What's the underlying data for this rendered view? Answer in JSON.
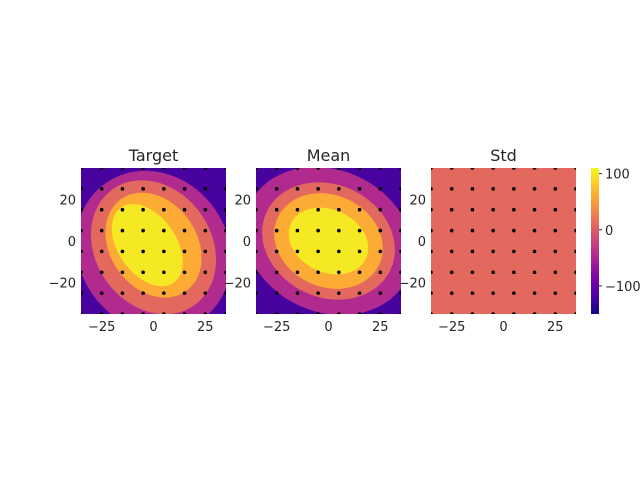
{
  "chart_data": {
    "type": "heatmap",
    "layout": "three filled-contour panels with shared colorbar on the right",
    "colormap": "plasma",
    "color_range": [
      -150,
      110
    ],
    "x_domain": [
      -35,
      35
    ],
    "y_domain": [
      -35,
      35
    ],
    "xticks": [
      -25,
      0,
      25
    ],
    "yticks": [
      20,
      0,
      -20
    ],
    "xtick_labels": [
      "−25",
      "0",
      "25"
    ],
    "ytick_labels": [
      "20",
      "0",
      "−20"
    ],
    "sample_points": {
      "x": [
        -35,
        -25,
        -15,
        -5,
        5,
        15,
        25,
        35
      ],
      "y": [
        35,
        25,
        15,
        5,
        -5,
        -15,
        -25,
        -35
      ],
      "marker": "black dot"
    },
    "panels": [
      {
        "title": "Target",
        "show_ytick_labels": true,
        "contours": {
          "background_value": -120,
          "levels": [
            {
              "value": -45,
              "center": [
                0,
                -5
              ],
              "radii": [
                36,
                40
              ],
              "rotation_deg": -35
            },
            {
              "value": 10,
              "center": [
                0,
                -3
              ],
              "radii": [
                28,
                34
              ],
              "rotation_deg": -35
            },
            {
              "value": 60,
              "center": [
                0,
                -2
              ],
              "radii": [
                21,
                27
              ],
              "rotation_deg": -35
            },
            {
              "value": 100,
              "center": [
                -3,
                -2
              ],
              "radii": [
                14,
                22
              ],
              "rotation_deg": -35
            }
          ]
        }
      },
      {
        "title": "Mean",
        "show_ytick_labels": true,
        "contours": {
          "background_value": -120,
          "levels": [
            {
              "value": -45,
              "center": [
                0,
                0
              ],
              "radii": [
                42,
                34
              ],
              "rotation_deg": 25
            },
            {
              "value": 10,
              "center": [
                0,
                0
              ],
              "radii": [
                33,
                27
              ],
              "rotation_deg": 25
            },
            {
              "value": 60,
              "center": [
                0,
                0
              ],
              "radii": [
                27,
                22
              ],
              "rotation_deg": 25
            },
            {
              "value": 100,
              "center": [
                0,
                0
              ],
              "radii": [
                20,
                15
              ],
              "rotation_deg": 25
            }
          ]
        }
      },
      {
        "title": "Std",
        "show_ytick_labels": true,
        "uniform_value": 10
      }
    ],
    "colorbar": {
      "ticks": [
        100,
        0,
        -100
      ],
      "tick_labels": [
        "100",
        "0",
        "−100"
      ]
    }
  }
}
